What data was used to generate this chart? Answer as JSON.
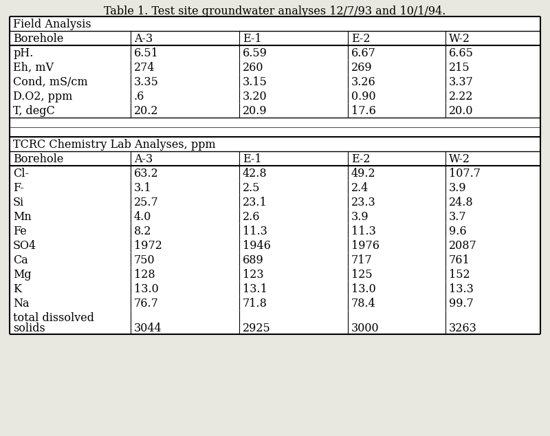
{
  "title": "Table 1. Test site groundwater analyses 12/7/93 and 10/1/94.",
  "background_color": "#e8e8e0",
  "table_bg": "#ffffff",
  "section1_header": "Field Analysis",
  "section2_header": "TCRC Chemistry Lab Analyses, ppm",
  "col_headers": [
    "Borehole",
    "A-3",
    "E-1",
    "E-2",
    "W-2"
  ],
  "field_rows": [
    [
      "pH.",
      "6.51",
      "6.59",
      "6.67",
      "6.65"
    ],
    [
      "Eh, mV",
      "274",
      "260",
      "269",
      "215"
    ],
    [
      "Cond, mS/cm",
      "3.35",
      "3.15",
      "3.26",
      "3.37"
    ],
    [
      "D.O2, ppm",
      ".6",
      "3.20",
      "0.90",
      "2.22"
    ],
    [
      "T, degC",
      "20.2",
      "20.9",
      "17.6",
      "20.0"
    ]
  ],
  "chem_rows": [
    [
      "Cl-",
      "63.2",
      "42.8",
      "49.2",
      "107.7"
    ],
    [
      "F-",
      "3.1",
      "2.5",
      "2.4",
      "3.9"
    ],
    [
      "Si",
      "25.7",
      "23.1",
      "23.3",
      "24.8"
    ],
    [
      "Mn",
      "4.0",
      "2.6",
      "3.9",
      "3.7"
    ],
    [
      "Fe",
      "8.2",
      "11.3",
      "11.3",
      "9.6"
    ],
    [
      "SO4",
      "1972",
      "1946",
      "1976",
      "2087"
    ],
    [
      "Ca",
      "750",
      "689",
      "717",
      "761"
    ],
    [
      "Mg",
      "128",
      "123",
      "125",
      "152"
    ],
    [
      "K",
      "13.0",
      "13.1",
      "13.0",
      "13.3"
    ],
    [
      "Na",
      "76.7",
      "71.8",
      "78.4",
      "99.7"
    ],
    [
      "total dissolved\nsolids",
      "3044",
      "2925",
      "3000",
      "3263"
    ]
  ],
  "font_size": 11.5,
  "title_font_size": 11.5
}
